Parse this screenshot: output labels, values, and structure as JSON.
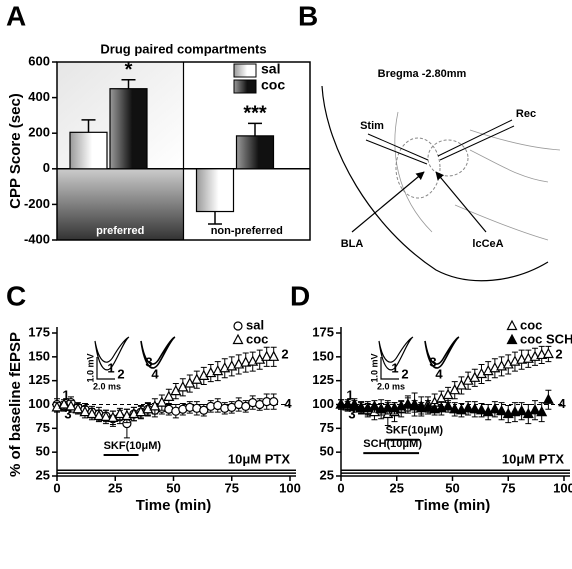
{
  "diagram": {
    "panel": "B",
    "title": "Bregma -2.80mm",
    "labels": [
      "Stim",
      "Rec",
      "BLA",
      "lcCeA"
    ]
  },
  "chart_data": [
    {
      "panel": "A",
      "type": "bar",
      "title": "Drug paired compartments",
      "ylabel": "CPP Score (sec)",
      "categories": [
        "preferred",
        "non-preferred"
      ],
      "series": [
        {
          "name": "sal",
          "color": "#ffffff",
          "values": [
            205,
            -240
          ],
          "errors": [
            70,
            70
          ]
        },
        {
          "name": "coc",
          "color": "#111111",
          "values": [
            450,
            185
          ],
          "errors": [
            50,
            70
          ],
          "significance": [
            "*",
            "***"
          ]
        }
      ],
      "ylim": [
        -400,
        600
      ],
      "yticks": [
        -400,
        -200,
        0,
        200,
        400,
        600
      ]
    },
    {
      "panel": "C",
      "type": "line",
      "ylabel": "% of baseline fEPSP",
      "xlabel": "Time (min)",
      "x": [
        0,
        3,
        6,
        9,
        12,
        15,
        18,
        21,
        24,
        27,
        30,
        33,
        36,
        39,
        42,
        45,
        48,
        51,
        54,
        57,
        60,
        63,
        66,
        69,
        72,
        75,
        78,
        81,
        84,
        87,
        90,
        93
      ],
      "series": [
        {
          "name": "sal",
          "marker": "circle-open",
          "color": "#000000",
          "values": [
            100,
            98,
            102,
            97,
            95,
            92,
            90,
            88,
            85,
            87,
            80,
            90,
            92,
            95,
            94,
            96,
            95,
            93,
            95,
            97,
            96,
            94,
            98,
            99,
            96,
            97,
            100,
            98,
            102,
            100,
            103,
            103
          ],
          "errors": [
            6,
            5,
            6,
            5,
            6,
            6,
            7,
            6,
            8,
            7,
            15,
            7,
            6,
            6,
            7,
            6,
            6,
            7,
            6,
            6,
            7,
            6,
            6,
            7,
            6,
            6,
            7,
            6,
            7,
            6,
            8,
            8
          ]
        },
        {
          "name": "coc",
          "marker": "triangle-open",
          "color": "#000000",
          "values": [
            97,
            100,
            98,
            95,
            92,
            90,
            88,
            87,
            86,
            90,
            88,
            90,
            92,
            95,
            98,
            102,
            108,
            114,
            118,
            122,
            126,
            130,
            133,
            135,
            138,
            140,
            142,
            144,
            145,
            147,
            150,
            150
          ],
          "errors": [
            5,
            5,
            6,
            5,
            6,
            6,
            6,
            7,
            7,
            6,
            7,
            7,
            7,
            7,
            8,
            8,
            8,
            8,
            9,
            9,
            9,
            9,
            9,
            10,
            10,
            10,
            10,
            10,
            10,
            10,
            10,
            10
          ]
        }
      ],
      "reference_line": 100,
      "baseline_levels": [
        31,
        28
      ],
      "baseline_label": "10μM PTX",
      "treatments": [
        {
          "label": "SKF(10μM)",
          "start": 20,
          "end": 35,
          "level": 47
        }
      ],
      "trace_labels": [
        "1",
        "2",
        "3",
        "4"
      ],
      "scale_labels": [
        "1.0 mV",
        "2.0 ms"
      ],
      "xlim": [
        0,
        100
      ],
      "xticks": [
        0,
        25,
        50,
        75,
        100
      ],
      "ylim": [
        25,
        175
      ],
      "yticks": [
        25,
        50,
        75,
        100,
        125,
        150,
        175
      ]
    },
    {
      "panel": "D",
      "type": "line",
      "xlabel": "Time (min)",
      "x": [
        0,
        3,
        6,
        9,
        12,
        15,
        18,
        21,
        24,
        27,
        30,
        33,
        36,
        39,
        42,
        45,
        48,
        51,
        54,
        57,
        60,
        63,
        66,
        69,
        72,
        75,
        78,
        81,
        84,
        87,
        90,
        93
      ],
      "series": [
        {
          "name": "coc",
          "marker": "triangle-open",
          "color": "#000000",
          "values": [
            100,
            98,
            100,
            96,
            94,
            92,
            95,
            90,
            92,
            95,
            100,
            100,
            98,
            100,
            102,
            106,
            110,
            115,
            120,
            125,
            128,
            132,
            135,
            138,
            140,
            142,
            145,
            147,
            148,
            150,
            152,
            153
          ],
          "errors": [
            5,
            5,
            6,
            6,
            7,
            8,
            10,
            12,
            10,
            8,
            9,
            12,
            10,
            8,
            9,
            8,
            8,
            9,
            9,
            9,
            9,
            10,
            10,
            10,
            10,
            10,
            10,
            10,
            9,
            9,
            9,
            8
          ]
        },
        {
          "name": "coc SCH",
          "marker": "triangle-filled",
          "color": "#000000",
          "values": [
            100,
            100,
            98,
            97,
            96,
            98,
            95,
            97,
            96,
            98,
            100,
            98,
            96,
            97,
            95,
            96,
            98,
            95,
            94,
            96,
            95,
            94,
            92,
            95,
            93,
            90,
            92,
            93,
            90,
            94,
            92,
            105
          ],
          "errors": [
            5,
            5,
            6,
            6,
            7,
            6,
            6,
            7,
            6,
            6,
            7,
            6,
            6,
            7,
            6,
            7,
            6,
            7,
            7,
            7,
            8,
            7,
            8,
            8,
            9,
            9,
            10,
            9,
            10,
            10,
            10,
            10
          ]
        }
      ],
      "reference_line": 100,
      "baseline_levels": [
        31,
        28
      ],
      "baseline_label": "10μM PTX",
      "treatments": [
        {
          "label": "SKF(10μM)",
          "start": 20,
          "end": 35,
          "level": 63
        },
        {
          "label": "SCH(10μM)",
          "start": 10,
          "end": 35,
          "level": 49
        }
      ],
      "trace_labels": [
        "1",
        "2",
        "3",
        "4"
      ],
      "scale_labels": [
        "1.0 mV",
        "2.0 ms"
      ],
      "xlim": [
        0,
        100
      ],
      "xticks": [
        0,
        25,
        50,
        75,
        100
      ],
      "ylim": [
        25,
        175
      ],
      "yticks": [
        25,
        50,
        75,
        100,
        125,
        150,
        175
      ]
    }
  ]
}
